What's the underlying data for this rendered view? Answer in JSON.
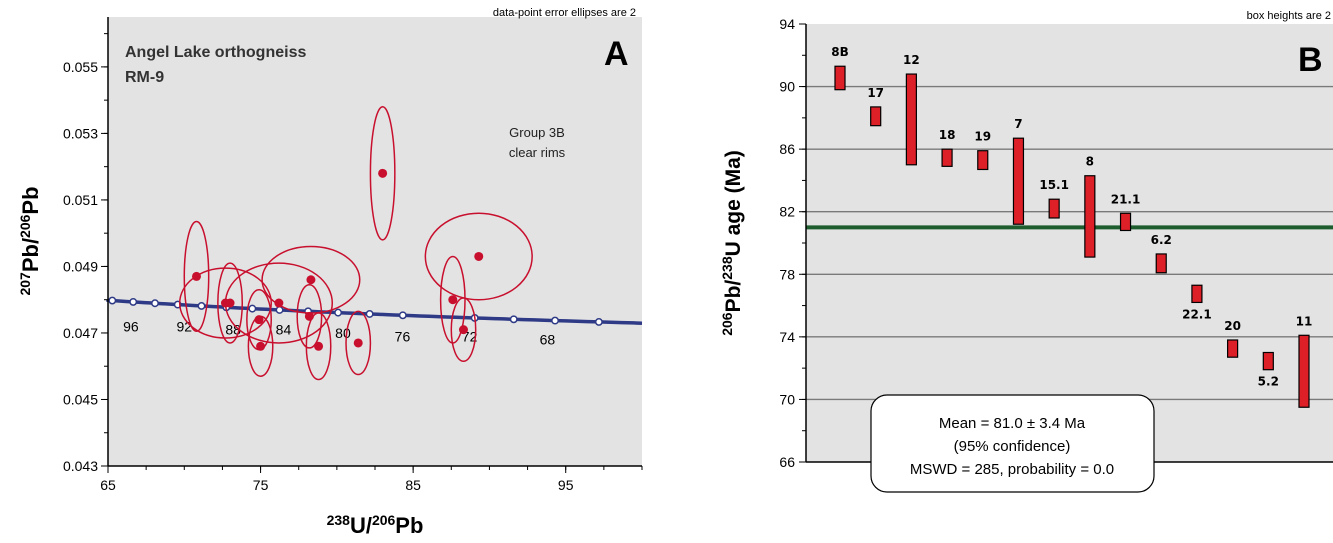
{
  "chart_data": [
    {
      "type": "scatter",
      "panel_letter": "A",
      "title": "Angel Lake orthogneiss",
      "subtitle": "RM-9",
      "note": "data-point error ellipses are 2",
      "annotation": [
        "Group 3B",
        "clear rims"
      ],
      "xlabel": {
        "sup1": "238",
        "base1": "U/",
        "sup2": "206",
        "base2": "Pb"
      },
      "ylabel": {
        "sup1": "207",
        "base1": "Pb/",
        "sup2": "206",
        "base2": "Pb"
      },
      "xlim": [
        65,
        100
      ],
      "ylim": [
        0.043,
        0.0565
      ],
      "xticks": [
        "65",
        "75",
        "85",
        "95"
      ],
      "yticks": [
        "0.043",
        "0.045",
        "0.047",
        "0.049",
        "0.051",
        "0.053",
        "0.055"
      ],
      "concordia_labels": [
        {
          "text": "96",
          "x": 66.5,
          "y": 0.0472
        },
        {
          "text": "92",
          "x": 70.0,
          "y": 0.0472
        },
        {
          "text": "88",
          "x": 73.2,
          "y": 0.0471
        },
        {
          "text": "84",
          "x": 76.5,
          "y": 0.0471
        },
        {
          "text": "80",
          "x": 80.4,
          "y": 0.047
        },
        {
          "text": "76",
          "x": 84.3,
          "y": 0.0469
        },
        {
          "text": "72",
          "x": 88.7,
          "y": 0.0469
        },
        {
          "text": "68",
          "x": 93.8,
          "y": 0.0468
        }
      ],
      "concordia_ages": [
        98,
        96,
        94,
        92,
        90,
        88,
        86,
        84,
        82,
        80,
        78,
        76,
        72,
        70,
        68,
        66
      ],
      "points": [
        {
          "x": 70.8,
          "y": 0.0487,
          "ex": 0.8,
          "ey": 0.00165
        },
        {
          "x": 72.7,
          "y": 0.0479,
          "ex": 3.0,
          "ey": 0.00105
        },
        {
          "x": 73.0,
          "y": 0.0479,
          "ex": 0.8,
          "ey": 0.0012
        },
        {
          "x": 74.9,
          "y": 0.0474,
          "ex": 0.8,
          "ey": 0.0009
        },
        {
          "x": 75.0,
          "y": 0.0466,
          "ex": 0.8,
          "ey": 0.0009
        },
        {
          "x": 76.2,
          "y": 0.0479,
          "ex": 3.5,
          "ey": 0.0012
        },
        {
          "x": 78.2,
          "y": 0.0475,
          "ex": 0.8,
          "ey": 0.00095
        },
        {
          "x": 78.3,
          "y": 0.0486,
          "ex": 3.2,
          "ey": 0.001
        },
        {
          "x": 78.8,
          "y": 0.0466,
          "ex": 0.8,
          "ey": 0.001
        },
        {
          "x": 81.4,
          "y": 0.0467,
          "ex": 0.8,
          "ey": 0.00095
        },
        {
          "x": 83.0,
          "y": 0.0518,
          "ex": 0.8,
          "ey": 0.002
        },
        {
          "x": 87.6,
          "y": 0.048,
          "ex": 0.8,
          "ey": 0.0013
        },
        {
          "x": 88.3,
          "y": 0.0471,
          "ex": 0.8,
          "ey": 0.00095
        },
        {
          "x": 89.3,
          "y": 0.0493,
          "ex": 3.5,
          "ey": 0.0013
        }
      ]
    },
    {
      "type": "bar",
      "panel_letter": "B",
      "note": "box heights are 2",
      "ylabel": {
        "sup1": "206",
        "base1": "Pb/",
        "sup2": "238",
        "base2": "U age (Ma)"
      },
      "ylim": [
        66,
        94
      ],
      "yticks": [
        "66",
        "70",
        "74",
        "78",
        "82",
        "86",
        "90",
        "94"
      ],
      "mean": 81.0,
      "summary_lines": [
        "Mean = 81.0 ± 3.4 Ma",
        "(95% confidence)",
        "MSWD = 285, probability = 0.0"
      ],
      "bars": [
        {
          "label": "8B",
          "low": 89.8,
          "high": 91.3,
          "label_pos": "above"
        },
        {
          "label": "17",
          "low": 87.5,
          "high": 88.7,
          "label_pos": "above"
        },
        {
          "label": "12",
          "low": 85.0,
          "high": 90.8,
          "label_pos": "above"
        },
        {
          "label": "18",
          "low": 84.9,
          "high": 86.0,
          "label_pos": "above"
        },
        {
          "label": "19",
          "low": 84.7,
          "high": 85.9,
          "label_pos": "above"
        },
        {
          "label": "7",
          "low": 81.2,
          "high": 86.7,
          "label_pos": "above"
        },
        {
          "label": "15.1",
          "low": 81.6,
          "high": 82.8,
          "label_pos": "above"
        },
        {
          "label": "8",
          "low": 79.1,
          "high": 84.3,
          "label_pos": "above"
        },
        {
          "label": "21.1",
          "low": 80.8,
          "high": 81.9,
          "label_pos": "above"
        },
        {
          "label": "6.2",
          "low": 78.1,
          "high": 79.3,
          "label_pos": "above"
        },
        {
          "label": "22.1",
          "low": 76.2,
          "high": 77.3,
          "label_pos": "below"
        },
        {
          "label": "20",
          "low": 72.7,
          "high": 73.8,
          "label_pos": "above"
        },
        {
          "label": "5.2",
          "low": 71.9,
          "high": 73.0,
          "label_pos": "below"
        },
        {
          "label": "11",
          "low": 69.5,
          "high": 74.1,
          "label_pos": "above"
        }
      ]
    }
  ],
  "colors": {
    "panel_bg": "#e3e3e3",
    "ellipse": "#c8102e",
    "concordia": "#2e3a86",
    "bar_fill": "#dd2028",
    "mean_line": "#1e5e2e",
    "grid": "#7a7a7a"
  }
}
